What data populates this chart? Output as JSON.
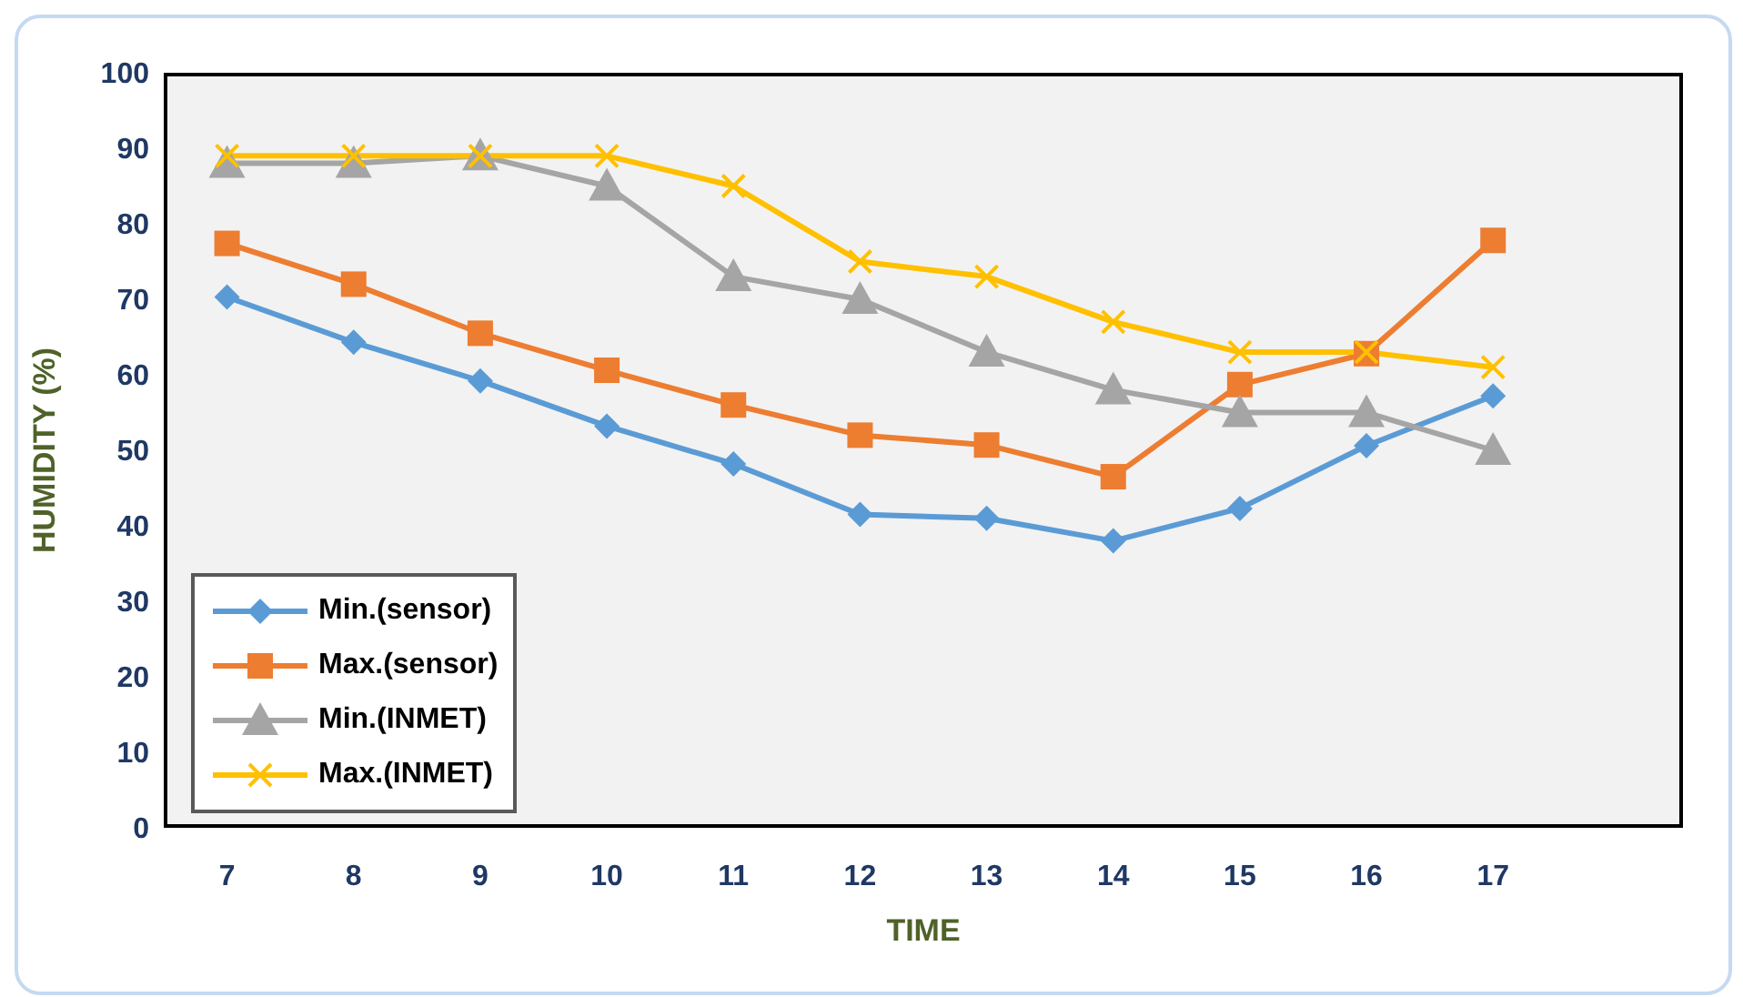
{
  "chart_data": {
    "type": "line",
    "xlabel": "TIME",
    "ylabel": "HUMIDITY (%)",
    "x": [
      7,
      8,
      9,
      10,
      11,
      12,
      13,
      14,
      15,
      16,
      17
    ],
    "xlim": [
      6.5,
      18.5
    ],
    "xticks": [
      7,
      8,
      9,
      10,
      11,
      12,
      13,
      14,
      15,
      16,
      17
    ],
    "ylim": [
      0,
      100
    ],
    "yticks": [
      0,
      10,
      20,
      30,
      40,
      50,
      60,
      70,
      80,
      90,
      100
    ],
    "grid": false,
    "legend": "bottom left",
    "line_style": "solid",
    "series": [
      {
        "name": "Min.(sensor)",
        "color": "#5b9bd5",
        "marker": "diamond",
        "values": [
          70.3,
          64.3,
          59.2,
          53.2,
          48.2,
          41.5,
          41,
          38,
          42.3,
          50.6,
          57.2
        ]
      },
      {
        "name": "Max.(sensor)",
        "color": "#ed7d31",
        "marker": "square",
        "values": [
          77.4,
          72,
          65.5,
          60.6,
          56,
          52,
          50.7,
          46.5,
          58.7,
          62.8,
          77.8
        ]
      },
      {
        "name": "Min.(INMET)",
        "color": "#a5a5a5",
        "marker": "triangle",
        "values": [
          88,
          88,
          89,
          85,
          73,
          70,
          63,
          58,
          55,
          55,
          50
        ]
      },
      {
        "name": "Max.(INMET)",
        "color": "#ffc000",
        "marker": "cross",
        "values": [
          89,
          89,
          89,
          89,
          85,
          75,
          73,
          67,
          63,
          63,
          61
        ]
      }
    ]
  }
}
